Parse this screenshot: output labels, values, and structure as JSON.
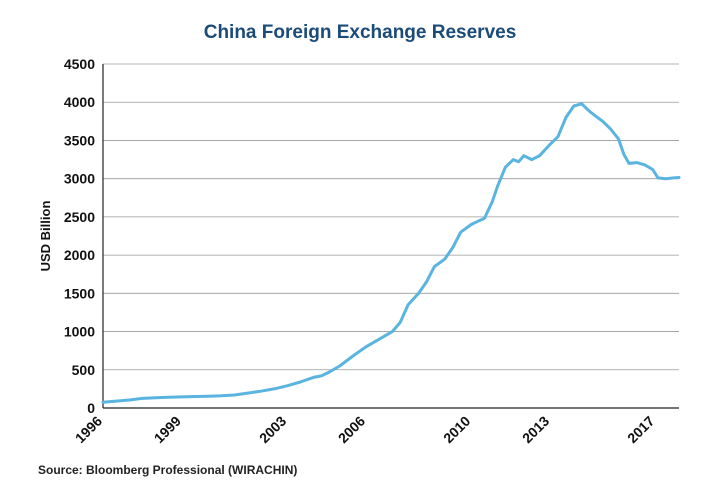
{
  "chart_data": {
    "type": "line",
    "title": "China Foreign Exchange Reserves",
    "ylabel": "USD Billion",
    "xlabel": "",
    "source": "Source: Bloomberg Professional (WIRACHIN)",
    "ylim": [
      0,
      4500
    ],
    "xlim": [
      1996,
      2017.9
    ],
    "yticks": [
      "0",
      "500",
      "1000",
      "1500",
      "2000",
      "2500",
      "3000",
      "3500",
      "4000",
      "4500"
    ],
    "xticks": [
      "1996",
      "1999",
      "2003",
      "2006",
      "2010",
      "2013",
      "2017"
    ],
    "grid": true,
    "line_color": "#5ab4e0",
    "series": [
      {
        "x": [
          1996.0,
          1996.5,
          1997.0,
          1997.5,
          1998.0,
          1998.5,
          1999.0,
          1999.5,
          2000.0,
          2000.5,
          2001.0,
          2001.5,
          2002.0,
          2002.5,
          2003.0,
          2003.5,
          2004.0,
          2004.3,
          2004.6,
          2005.0,
          2005.5,
          2006.0,
          2006.5,
          2007.0,
          2007.3,
          2007.6,
          2008.0,
          2008.3,
          2008.6,
          2008.8,
          2009.0,
          2009.3,
          2009.6,
          2010.0,
          2010.3,
          2010.5,
          2010.8,
          2011.0,
          2011.3,
          2011.6,
          2011.8,
          2012.0,
          2012.3,
          2012.6,
          2013.0,
          2013.3,
          2013.6,
          2013.9,
          2014.2,
          2014.5,
          2014.8,
          2015.0,
          2015.3,
          2015.6,
          2015.8,
          2016.0,
          2016.3,
          2016.6,
          2016.9,
          2017.1,
          2017.4,
          2017.7,
          2017.9
        ],
        "values": [
          75,
          90,
          105,
          125,
          135,
          140,
          145,
          150,
          155,
          160,
          170,
          195,
          220,
          250,
          290,
          340,
          400,
          420,
          470,
          550,
          680,
          800,
          900,
          1000,
          1120,
          1350,
          1500,
          1650,
          1850,
          1900,
          1950,
          2100,
          2300,
          2400,
          2450,
          2480,
          2700,
          2900,
          3150,
          3250,
          3220,
          3300,
          3250,
          3300,
          3450,
          3550,
          3800,
          3950,
          3980,
          3880,
          3800,
          3750,
          3650,
          3520,
          3320,
          3200,
          3210,
          3180,
          3120,
          3010,
          3000,
          3010,
          3015
        ]
      }
    ]
  }
}
